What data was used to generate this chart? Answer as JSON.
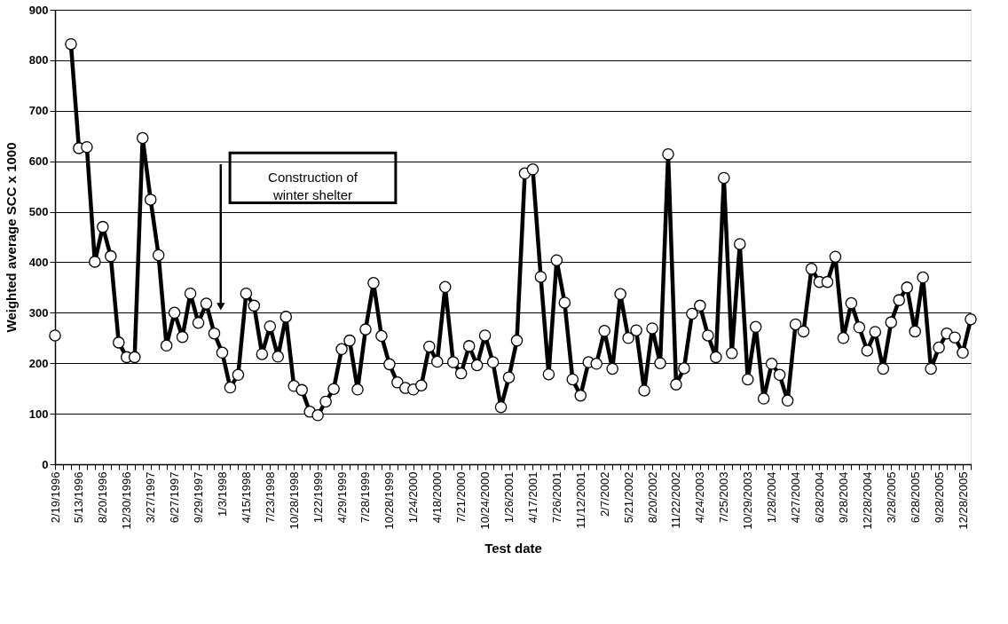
{
  "chart_data": {
    "type": "line",
    "xlabel": "Test date",
    "ylabel": "Weighted average SCC x 1000",
    "categories": [
      "2/19/1996",
      null,
      null,
      "5/13/1996",
      null,
      null,
      "8/20/1996",
      null,
      null,
      "12/30/1996",
      null,
      null,
      "3/27/1997",
      null,
      null,
      "6/27/1997",
      null,
      null,
      "9/29/1997",
      null,
      null,
      "1/3/1998",
      null,
      null,
      "4/15/1998",
      null,
      null,
      "7/23/1998",
      null,
      null,
      "10/28/1998",
      null,
      null,
      "1/22/1999",
      null,
      null,
      "4/29/1999",
      null,
      null,
      "7/28/1999",
      null,
      null,
      "10/28/1999",
      null,
      null,
      "1/24/2000",
      null,
      null,
      "4/18/2000",
      null,
      null,
      "7/21/2000",
      null,
      null,
      "10/24/2000",
      null,
      null,
      "1/26/2001",
      null,
      null,
      "4/17/2001",
      null,
      null,
      "7/26/2001",
      null,
      null,
      "11/12/2001",
      null,
      null,
      "2/7/2002",
      null,
      null,
      "5/21/2002",
      null,
      null,
      "8/20/2002",
      null,
      null,
      "11/22/2002",
      null,
      null,
      "4/24/2003",
      null,
      null,
      "7/25/2003",
      null,
      null,
      "10/29/2003",
      null,
      null,
      "1/28/2004",
      null,
      null,
      "4/27/2004",
      null,
      null,
      "6/28/2004",
      null,
      null,
      "9/28/2004",
      null,
      null,
      "12/28/2004",
      null,
      null,
      "3/28/2005",
      null,
      null,
      "6/28/2005",
      null,
      null,
      "9/28/2005",
      null,
      null,
      "12/28/2005",
      null
    ],
    "series": [
      {
        "color": "#000000",
        "values": [
          255,
          null,
          832,
          626,
          628,
          401,
          470,
          412,
          241,
          212,
          212,
          646,
          524,
          414,
          235,
          300,
          252,
          338,
          280,
          318,
          259,
          221,
          152,
          177,
          338,
          314,
          218,
          273,
          213,
          292,
          155,
          147,
          104,
          97,
          124,
          149,
          228,
          245,
          148,
          267,
          359,
          254,
          198,
          162,
          151,
          148,
          156,
          233,
          203,
          351,
          202,
          180,
          234,
          196,
          255,
          202,
          113,
          172,
          245,
          576,
          584,
          371,
          178,
          404,
          320,
          168,
          136,
          202,
          199,
          264,
          189,
          337,
          250,
          265,
          146,
          269,
          200,
          614,
          158,
          190,
          298,
          314,
          255,
          212,
          567,
          220,
          436,
          168,
          272,
          130,
          199,
          177,
          126,
          277,
          263,
          387,
          361,
          361,
          411,
          250,
          319,
          271,
          225,
          262,
          189,
          281,
          325,
          350,
          263,
          370,
          189,
          231,
          259,
          251,
          221,
          287
        ]
      }
    ],
    "ylim": [
      0,
      900
    ],
    "yticks": [
      0,
      100,
      200,
      300,
      400,
      500,
      600,
      700,
      800,
      900
    ],
    "grid": "y",
    "marker": "circle",
    "line_style": "solid",
    "annotations": [
      "Construction of winter shelter"
    ]
  }
}
